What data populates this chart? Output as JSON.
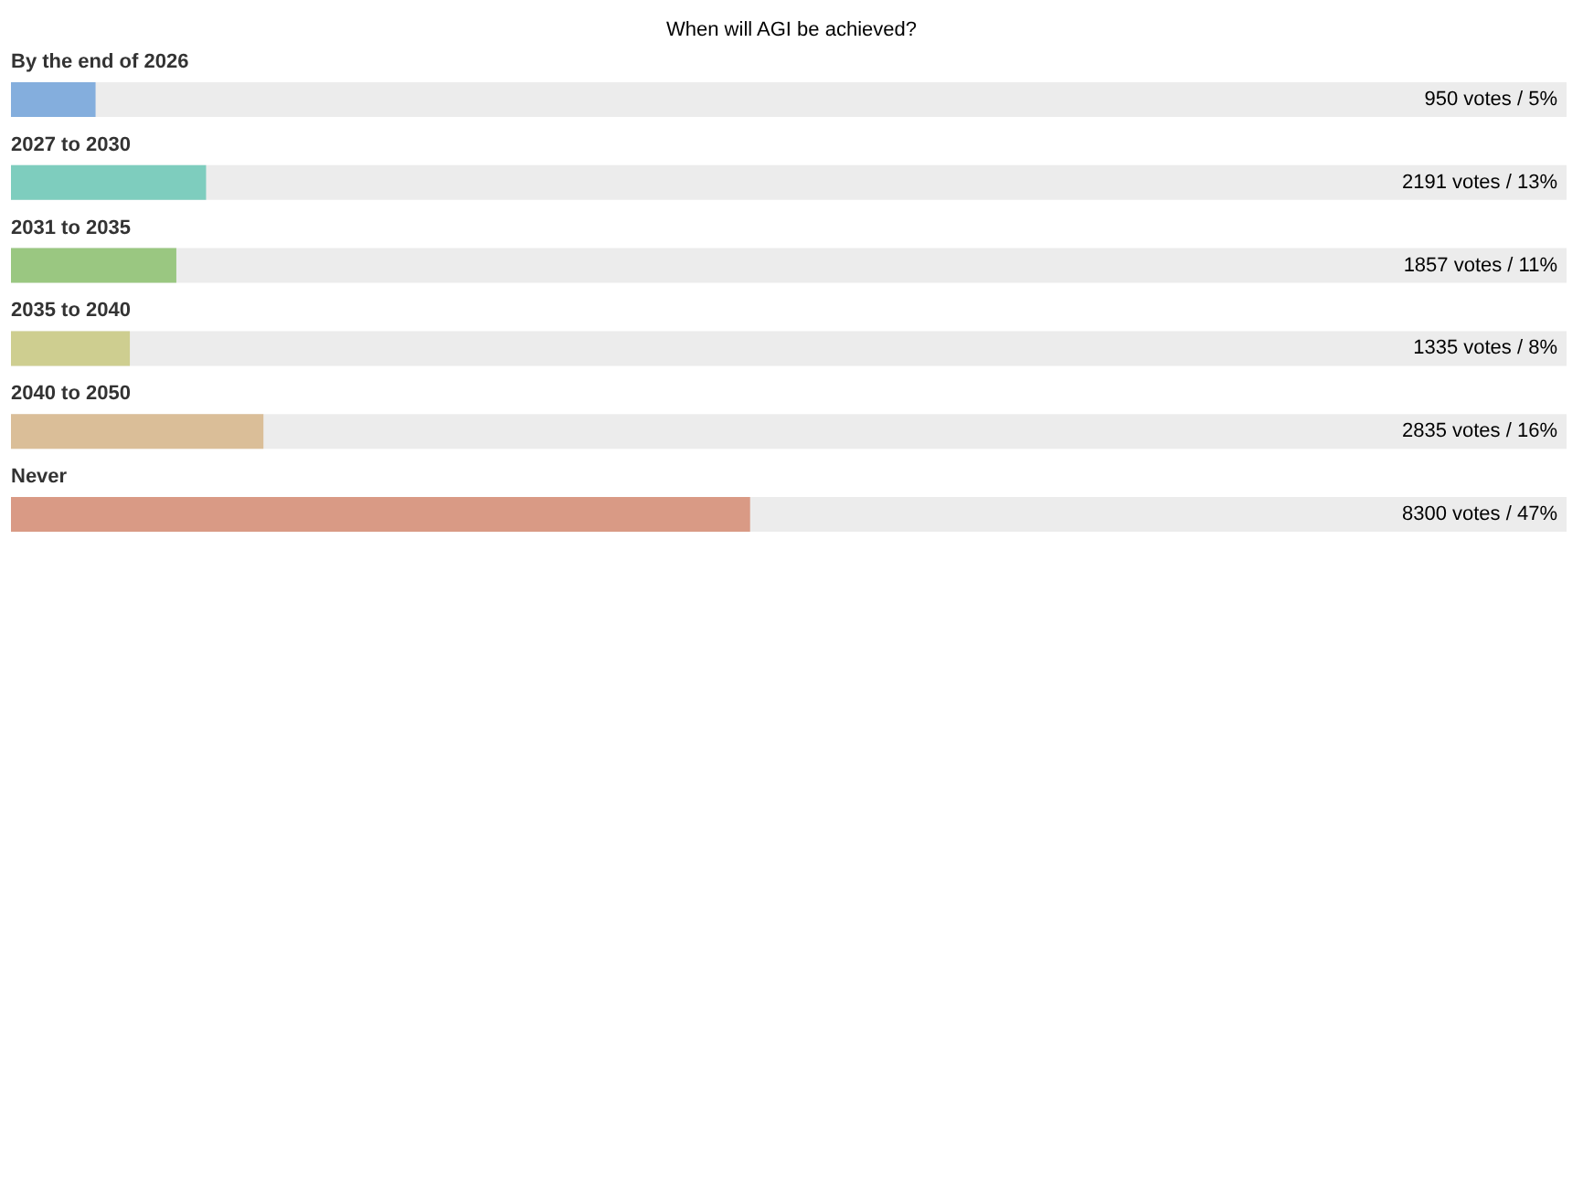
{
  "chart_data": {
    "type": "bar",
    "orientation": "horizontal",
    "title": "When will AGI be achieved?",
    "categories": [
      "By the end of 2026",
      "2027 to 2030",
      "2031 to 2035",
      "2035 to 2040",
      "2040 to 2050",
      "Never"
    ],
    "values": [
      950,
      2191,
      1857,
      1335,
      2835,
      8300
    ],
    "colors": [
      "#84aedd",
      "#7ecdbe",
      "#9ac781",
      "#cece90",
      "#dabe98",
      "#d99a85"
    ],
    "value_labels": [
      "950 votes / 5%",
      "2191 votes / 13%",
      "1857 votes / 11%",
      "1335 votes / 8%",
      "2835 votes / 16%",
      "8300 votes / 47%"
    ],
    "xlim": [
      0,
      17468
    ],
    "tick_labels": "y"
  }
}
